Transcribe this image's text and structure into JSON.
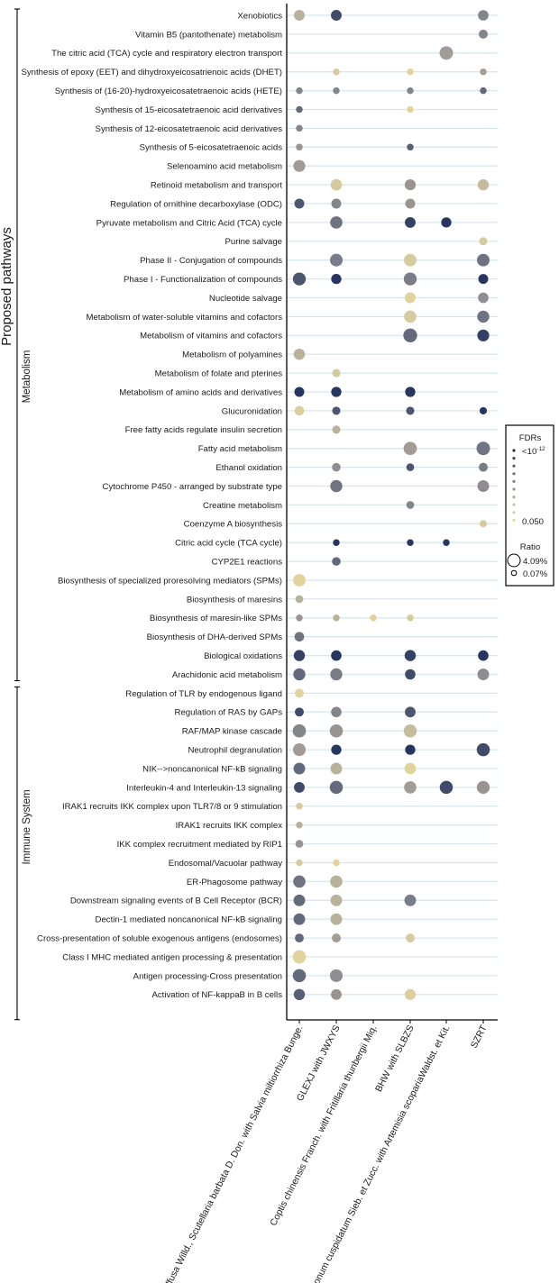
{
  "chart_data": {
    "type": "scatter",
    "subtype": "bubble-matrix",
    "ylabel": "Proposed pathways",
    "xlabel": "",
    "columns": [
      "Hedyotis diffusa Willd., Scutellaria barbata D. Don. with Salvia miltiorrhiza Bunge.",
      "GLEXJ with JWXYS",
      "Coptis chinensis Franch. with Fritillaria thunbergii Miq.",
      "BHW with SLBZS",
      "Polygonum cuspidatum Sieb. et Zucc. with Artemisia scopariaWaldst. et Kit.",
      "SZRT"
    ],
    "groups": [
      {
        "name": "Metabolism",
        "first_row": 0,
        "last_row": 35
      },
      {
        "name": "Immune System",
        "first_row": 36,
        "last_row": 53
      }
    ],
    "rows": [
      "Xenobiotics",
      "Vitamin B5 (pantothenate) metabolism",
      "The citric acid (TCA) cycle and respiratory electron transport",
      "Synthesis of epoxy (EET) and dihydroxyeicosatrienoic acids (DHET)",
      "Synthesis of (16-20)-hydroxyeicosatetraenoic acids (HETE)",
      "Synthesis of 15-eicosatetraenoic acid derivatives",
      "Synthesis of 12-eicosatetraenoic acid derivatives",
      "Synthesis of 5-eicosatetraenoic acids",
      "Selenoamino acid metabolism",
      "Retinoid metabolism and transport",
      "Regulation of ornithine decarboxylase (ODC)",
      "Pyruvate metabolism and Citric Acid (TCA) cycle",
      "Purine salvage",
      "Phase II - Conjugation of compounds",
      "Phase I - Functionalization of compounds",
      "Nucleotide salvage",
      "Metabolism of water-soluble vitamins and cofactors",
      "Metabolism of vitamins and cofactors",
      "Metabolism of polyamines",
      "Metabolism of folate and pterines",
      "Metabolism of amino acids and derivatives",
      "Glucuronidation",
      "Free fatty acids regulate insulin secretion",
      "Fatty acid metabolism",
      "Ethanol oxidation",
      "Cytochrome P450 - arranged by substrate type",
      "Creatine metabolism",
      "Coenzyme A biosynthesis",
      "Citric acid cycle (TCA cycle)",
      "CYP2E1 reactions",
      "Biosynthesis of specialized proresolving mediators (SPMs)",
      "Biosynthesis of maresins",
      "Biosynthesis of maresin-like SPMs",
      "Biosynthesis of DHA-derived SPMs",
      "Biological oxidations",
      "Arachidonic acid metabolism",
      "Regulation of TLR by endogenous ligand",
      "Regulation of RAS by GAPs",
      "RAF/MAP kinase cascade",
      "Neutrophil degranulation",
      "NIK-->noncanonical NF-kB signaling",
      "Interleukin-4 and Interleukin-13 signaling",
      "IRAK1 recruits IKK complex upon TLR7/8 or 9 stimulation",
      "IRAK1 recruits IKK complex",
      "IKK complex recruitment mediated by RIP1",
      "Endosomal/Vacuolar pathway",
      "ER-Phagosome pathway",
      "Downstream signaling events of B Cell Receptor (BCR)",
      "Dectin-1 mediated noncanonical NF-kB signaling",
      "Cross-presentation of soluble exogenous antigens (endosomes)",
      "Class I MHC mediated antigen processing & presentation",
      "Antigen processing-Cross presentation",
      "Activation of NF-kappaB in B cells"
    ],
    "points": [
      {
        "row": 0,
        "col": 0,
        "ratio": 1.4,
        "fdr": 0.7
      },
      {
        "row": 0,
        "col": 1,
        "ratio": 1.4,
        "fdr": 0.15
      },
      {
        "row": 0,
        "col": 5,
        "ratio": 1.3,
        "fdr": 0.45
      },
      {
        "row": 1,
        "col": 5,
        "ratio": 0.8,
        "fdr": 0.45
      },
      {
        "row": 2,
        "col": 4,
        "ratio": 2.7,
        "fdr": 0.6
      },
      {
        "row": 3,
        "col": 1,
        "ratio": 0.3,
        "fdr": 0.85
      },
      {
        "row": 3,
        "col": 3,
        "ratio": 0.3,
        "fdr": 0.95
      },
      {
        "row": 3,
        "col": 5,
        "ratio": 0.3,
        "fdr": 0.6
      },
      {
        "row": 4,
        "col": 0,
        "ratio": 0.3,
        "fdr": 0.45
      },
      {
        "row": 4,
        "col": 1,
        "ratio": 0.3,
        "fdr": 0.45
      },
      {
        "row": 4,
        "col": 3,
        "ratio": 0.3,
        "fdr": 0.45
      },
      {
        "row": 4,
        "col": 5,
        "ratio": 0.3,
        "fdr": 0.3
      },
      {
        "row": 5,
        "col": 0,
        "ratio": 0.3,
        "fdr": 0.3
      },
      {
        "row": 5,
        "col": 3,
        "ratio": 0.3,
        "fdr": 0.95
      },
      {
        "row": 6,
        "col": 0,
        "ratio": 0.3,
        "fdr": 0.45
      },
      {
        "row": 7,
        "col": 0,
        "ratio": 0.3,
        "fdr": 0.55
      },
      {
        "row": 7,
        "col": 3,
        "ratio": 0.3,
        "fdr": 0.25
      },
      {
        "row": 8,
        "col": 0,
        "ratio": 1.9,
        "fdr": 0.6
      },
      {
        "row": 9,
        "col": 1,
        "ratio": 1.7,
        "fdr": 0.85
      },
      {
        "row": 9,
        "col": 3,
        "ratio": 1.5,
        "fdr": 0.55
      },
      {
        "row": 9,
        "col": 5,
        "ratio": 1.6,
        "fdr": 0.75
      },
      {
        "row": 10,
        "col": 0,
        "ratio": 1.1,
        "fdr": 0.2
      },
      {
        "row": 10,
        "col": 1,
        "ratio": 1.1,
        "fdr": 0.45
      },
      {
        "row": 10,
        "col": 3,
        "ratio": 1.1,
        "fdr": 0.55
      },
      {
        "row": 11,
        "col": 1,
        "ratio": 2.1,
        "fdr": 0.35
      },
      {
        "row": 11,
        "col": 3,
        "ratio": 1.4,
        "fdr": 0.1
      },
      {
        "row": 11,
        "col": 4,
        "ratio": 1.2,
        "fdr": 0.05
      },
      {
        "row": 12,
        "col": 5,
        "ratio": 0.6,
        "fdr": 0.85
      },
      {
        "row": 13,
        "col": 1,
        "ratio": 2.3,
        "fdr": 0.4
      },
      {
        "row": 13,
        "col": 3,
        "ratio": 2.2,
        "fdr": 0.85
      },
      {
        "row": 13,
        "col": 5,
        "ratio": 2.2,
        "fdr": 0.35
      },
      {
        "row": 14,
        "col": 0,
        "ratio": 2.4,
        "fdr": 0.2
      },
      {
        "row": 14,
        "col": 1,
        "ratio": 1.2,
        "fdr": 0.05
      },
      {
        "row": 14,
        "col": 3,
        "ratio": 2.4,
        "fdr": 0.4
      },
      {
        "row": 14,
        "col": 5,
        "ratio": 1.1,
        "fdr": 0.05
      },
      {
        "row": 15,
        "col": 3,
        "ratio": 1.4,
        "fdr": 0.95
      },
      {
        "row": 15,
        "col": 5,
        "ratio": 1.3,
        "fdr": 0.5
      },
      {
        "row": 16,
        "col": 3,
        "ratio": 2.1,
        "fdr": 0.85
      },
      {
        "row": 16,
        "col": 5,
        "ratio": 2.0,
        "fdr": 0.35
      },
      {
        "row": 17,
        "col": 3,
        "ratio": 2.9,
        "fdr": 0.3
      },
      {
        "row": 17,
        "col": 5,
        "ratio": 1.9,
        "fdr": 0.1
      },
      {
        "row": 18,
        "col": 0,
        "ratio": 1.6,
        "fdr": 0.7
      },
      {
        "row": 19,
        "col": 1,
        "ratio": 0.6,
        "fdr": 0.85
      },
      {
        "row": 20,
        "col": 0,
        "ratio": 1.1,
        "fdr": 0.05
      },
      {
        "row": 20,
        "col": 1,
        "ratio": 1.2,
        "fdr": 0.05
      },
      {
        "row": 20,
        "col": 3,
        "ratio": 1.2,
        "fdr": 0.05
      },
      {
        "row": 21,
        "col": 0,
        "ratio": 1.0,
        "fdr": 0.9
      },
      {
        "row": 21,
        "col": 1,
        "ratio": 0.6,
        "fdr": 0.2
      },
      {
        "row": 21,
        "col": 3,
        "ratio": 0.6,
        "fdr": 0.2
      },
      {
        "row": 21,
        "col": 5,
        "ratio": 0.4,
        "fdr": 0.05
      },
      {
        "row": 22,
        "col": 1,
        "ratio": 0.6,
        "fdr": 0.7
      },
      {
        "row": 23,
        "col": 3,
        "ratio": 2.6,
        "fdr": 0.6
      },
      {
        "row": 23,
        "col": 5,
        "ratio": 2.7,
        "fdr": 0.35
      },
      {
        "row": 24,
        "col": 1,
        "ratio": 0.7,
        "fdr": 0.5
      },
      {
        "row": 24,
        "col": 3,
        "ratio": 0.5,
        "fdr": 0.2
      },
      {
        "row": 24,
        "col": 5,
        "ratio": 0.8,
        "fdr": 0.4
      },
      {
        "row": 25,
        "col": 1,
        "ratio": 2.0,
        "fdr": 0.35
      },
      {
        "row": 25,
        "col": 5,
        "ratio": 1.8,
        "fdr": 0.5
      },
      {
        "row": 26,
        "col": 3,
        "ratio": 0.5,
        "fdr": 0.45
      },
      {
        "row": 27,
        "col": 5,
        "ratio": 0.4,
        "fdr": 0.85
      },
      {
        "row": 28,
        "col": 1,
        "ratio": 0.3,
        "fdr": 0.05
      },
      {
        "row": 28,
        "col": 3,
        "ratio": 0.3,
        "fdr": 0.05
      },
      {
        "row": 28,
        "col": 4,
        "ratio": 0.3,
        "fdr": 0.05
      },
      {
        "row": 29,
        "col": 1,
        "ratio": 0.7,
        "fdr": 0.3
      },
      {
        "row": 30,
        "col": 0,
        "ratio": 2.2,
        "fdr": 0.95
      },
      {
        "row": 31,
        "col": 0,
        "ratio": 0.5,
        "fdr": 0.7
      },
      {
        "row": 32,
        "col": 0,
        "ratio": 0.3,
        "fdr": 0.55
      },
      {
        "row": 32,
        "col": 1,
        "ratio": 0.3,
        "fdr": 0.7
      },
      {
        "row": 32,
        "col": 2,
        "ratio": 0.3,
        "fdr": 0.95
      },
      {
        "row": 32,
        "col": 3,
        "ratio": 0.3,
        "fdr": 0.85
      },
      {
        "row": 33,
        "col": 0,
        "ratio": 1.0,
        "fdr": 0.35
      },
      {
        "row": 34,
        "col": 0,
        "ratio": 1.6,
        "fdr": 0.1
      },
      {
        "row": 34,
        "col": 1,
        "ratio": 1.3,
        "fdr": 0.05
      },
      {
        "row": 34,
        "col": 3,
        "ratio": 1.6,
        "fdr": 0.1
      },
      {
        "row": 34,
        "col": 5,
        "ratio": 1.3,
        "fdr": 0.05
      },
      {
        "row": 35,
        "col": 0,
        "ratio": 2.0,
        "fdr": 0.3
      },
      {
        "row": 35,
        "col": 1,
        "ratio": 2.0,
        "fdr": 0.4
      },
      {
        "row": 35,
        "col": 3,
        "ratio": 1.3,
        "fdr": 0.15
      },
      {
        "row": 35,
        "col": 5,
        "ratio": 1.8,
        "fdr": 0.5
      },
      {
        "row": 36,
        "col": 0,
        "ratio": 0.8,
        "fdr": 0.95
      },
      {
        "row": 37,
        "col": 0,
        "ratio": 0.8,
        "fdr": 0.15
      },
      {
        "row": 37,
        "col": 1,
        "ratio": 1.3,
        "fdr": 0.45
      },
      {
        "row": 37,
        "col": 3,
        "ratio": 1.4,
        "fdr": 0.2
      },
      {
        "row": 38,
        "col": 0,
        "ratio": 2.6,
        "fdr": 0.45
      },
      {
        "row": 38,
        "col": 1,
        "ratio": 2.5,
        "fdr": 0.55
      },
      {
        "row": 38,
        "col": 3,
        "ratio": 2.5,
        "fdr": 0.75
      },
      {
        "row": 39,
        "col": 0,
        "ratio": 2.3,
        "fdr": 0.6
      },
      {
        "row": 39,
        "col": 1,
        "ratio": 1.2,
        "fdr": 0.05
      },
      {
        "row": 39,
        "col": 3,
        "ratio": 1.2,
        "fdr": 0.05
      },
      {
        "row": 39,
        "col": 5,
        "ratio": 2.5,
        "fdr": 0.15
      },
      {
        "row": 40,
        "col": 0,
        "ratio": 1.8,
        "fdr": 0.3
      },
      {
        "row": 40,
        "col": 1,
        "ratio": 1.8,
        "fdr": 0.7
      },
      {
        "row": 40,
        "col": 3,
        "ratio": 1.7,
        "fdr": 0.95
      },
      {
        "row": 41,
        "col": 0,
        "ratio": 1.4,
        "fdr": 0.15
      },
      {
        "row": 41,
        "col": 1,
        "ratio": 2.5,
        "fdr": 0.3
      },
      {
        "row": 41,
        "col": 3,
        "ratio": 2.1,
        "fdr": 0.6
      },
      {
        "row": 41,
        "col": 4,
        "ratio": 2.5,
        "fdr": 0.15
      },
      {
        "row": 41,
        "col": 5,
        "ratio": 2.4,
        "fdr": 0.55
      },
      {
        "row": 42,
        "col": 0,
        "ratio": 0.3,
        "fdr": 0.85
      },
      {
        "row": 43,
        "col": 0,
        "ratio": 0.3,
        "fdr": 0.7
      },
      {
        "row": 44,
        "col": 0,
        "ratio": 0.5,
        "fdr": 0.55
      },
      {
        "row": 45,
        "col": 0,
        "ratio": 0.3,
        "fdr": 0.85
      },
      {
        "row": 45,
        "col": 1,
        "ratio": 0.3,
        "fdr": 0.95
      },
      {
        "row": 46,
        "col": 0,
        "ratio": 2.1,
        "fdr": 0.35
      },
      {
        "row": 46,
        "col": 1,
        "ratio": 2.1,
        "fdr": 0.7
      },
      {
        "row": 47,
        "col": 0,
        "ratio": 1.8,
        "fdr": 0.3
      },
      {
        "row": 47,
        "col": 1,
        "ratio": 1.8,
        "fdr": 0.7
      },
      {
        "row": 47,
        "col": 3,
        "ratio": 1.8,
        "fdr": 0.4
      },
      {
        "row": 48,
        "col": 0,
        "ratio": 1.8,
        "fdr": 0.3
      },
      {
        "row": 48,
        "col": 1,
        "ratio": 1.8,
        "fdr": 0.7
      },
      {
        "row": 49,
        "col": 0,
        "ratio": 0.8,
        "fdr": 0.3
      },
      {
        "row": 49,
        "col": 1,
        "ratio": 0.8,
        "fdr": 0.6
      },
      {
        "row": 49,
        "col": 3,
        "ratio": 0.8,
        "fdr": 0.85
      },
      {
        "row": 50,
        "col": 0,
        "ratio": 2.6,
        "fdr": 0.95
      },
      {
        "row": 51,
        "col": 0,
        "ratio": 2.5,
        "fdr": 0.3
      },
      {
        "row": 51,
        "col": 1,
        "ratio": 2.3,
        "fdr": 0.5
      },
      {
        "row": 52,
        "col": 0,
        "ratio": 1.6,
        "fdr": 0.25
      },
      {
        "row": 52,
        "col": 1,
        "ratio": 1.4,
        "fdr": 0.55
      },
      {
        "row": 52,
        "col": 3,
        "ratio": 1.5,
        "fdr": 0.9
      }
    ],
    "legend": {
      "placement": "right",
      "fdr_title": "FDRs",
      "fdr_low_base": "<10",
      "fdr_low_exp": "-12",
      "fdr_high": "0.050",
      "ratio_title": "Ratio",
      "ratio_high": "4.09%",
      "ratio_low": "0.07%"
    },
    "colors": {
      "fdr_scale": [
        "#1a2b5c",
        "#4c566e",
        "#7a7d88",
        "#a39c95",
        "#cfc7a0",
        "#e8d79a"
      ],
      "gridline": "#d6e8ee",
      "axis": "#000000"
    }
  }
}
